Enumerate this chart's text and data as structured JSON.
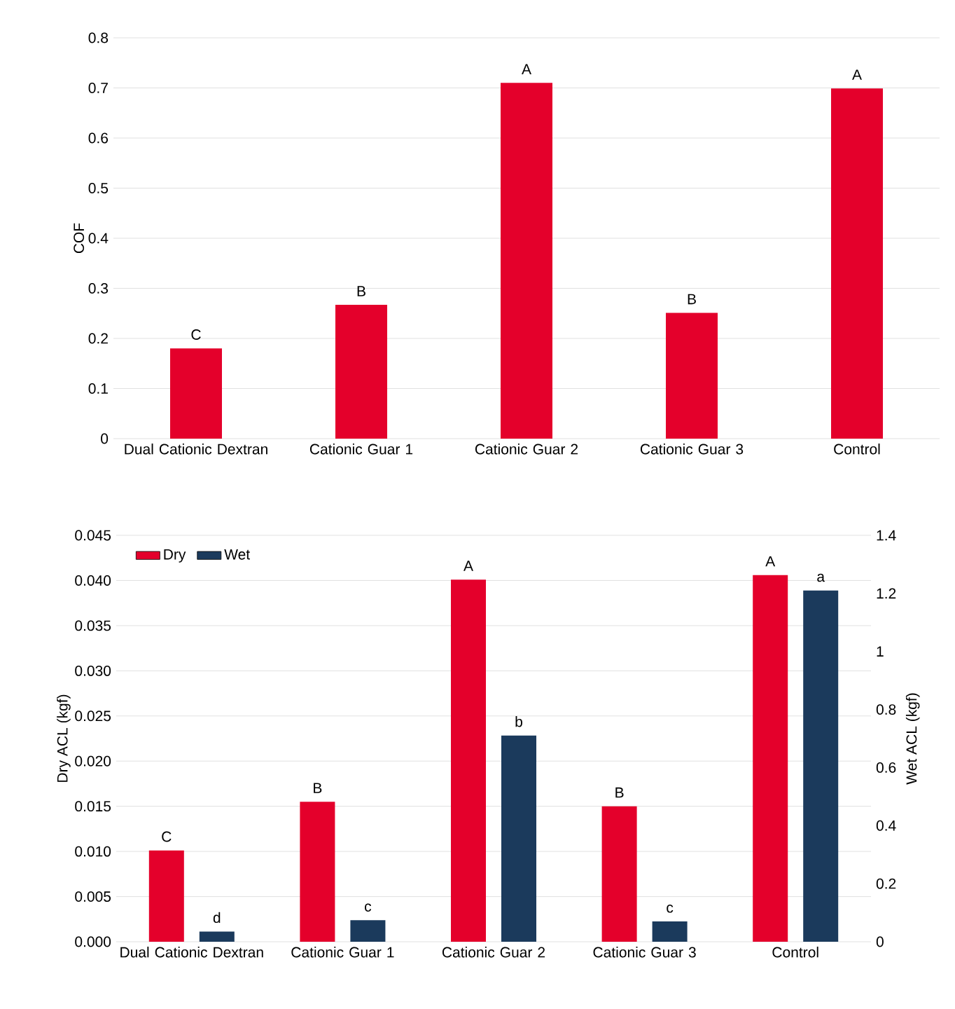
{
  "chart_data": [
    {
      "type": "bar",
      "categories": [
        "Dual Cationic Dextran",
        "Cationic Guar 1",
        "Cationic Guar 2",
        "Cationic Guar 3",
        "Control"
      ],
      "values": [
        0.18,
        0.267,
        0.71,
        0.251,
        0.699
      ],
      "color": "#e4002b",
      "value_labels": [
        "C",
        "B",
        "A",
        "B",
        "A"
      ],
      "ylabel": "COF",
      "ylim": [
        0,
        0.8
      ],
      "yticks": [
        0,
        0.1,
        0.2,
        0.3,
        0.4,
        0.5,
        0.6,
        0.7,
        0.8
      ],
      "grid": "y"
    },
    {
      "type": "bar",
      "categories": [
        "Dual Cationic Dextran",
        "Cationic Guar 1",
        "Cationic Guar 2",
        "Cationic Guar 3",
        "Control"
      ],
      "series": [
        {
          "name": "Dry",
          "color": "#e4002b",
          "values": [
            0.0101,
            0.0155,
            0.0401,
            0.015,
            0.0406
          ],
          "value_labels": [
            "C",
            "B",
            "A",
            "B",
            "A"
          ]
        },
        {
          "name": "Wet",
          "color": "#1b3a5c",
          "values": [
            0.035,
            0.074,
            0.71,
            0.07,
            1.21
          ],
          "value_labels": [
            "d",
            "c",
            "b",
            "c",
            "a"
          ],
          "axis": "y2"
        }
      ],
      "ylabel": "Dry ACL (kgf)",
      "y2label": "Wet ACL (kgf)",
      "ylim": [
        0,
        0.045
      ],
      "yticks": [
        {
          "value": 0,
          "label": "0.000"
        },
        {
          "value": 0.005,
          "label": "0.005"
        },
        {
          "value": 0.01,
          "label": "0.010"
        },
        {
          "value": 0.015,
          "label": "0.015"
        },
        {
          "value": 0.02,
          "label": "0.020"
        },
        {
          "value": 0.025,
          "label": "0.025"
        },
        {
          "value": 0.03,
          "label": "0.030"
        },
        {
          "value": 0.035,
          "label": "0.035"
        },
        {
          "value": 0.04,
          "label": "0.040"
        },
        {
          "value": 0.045,
          "label": "0.045"
        }
      ],
      "y2lim": [
        0,
        1.4
      ],
      "y2ticks": [
        0,
        0.2,
        0.4,
        0.6,
        0.8,
        1,
        1.2,
        1.4
      ],
      "grid": "y",
      "legend": "top left"
    }
  ]
}
